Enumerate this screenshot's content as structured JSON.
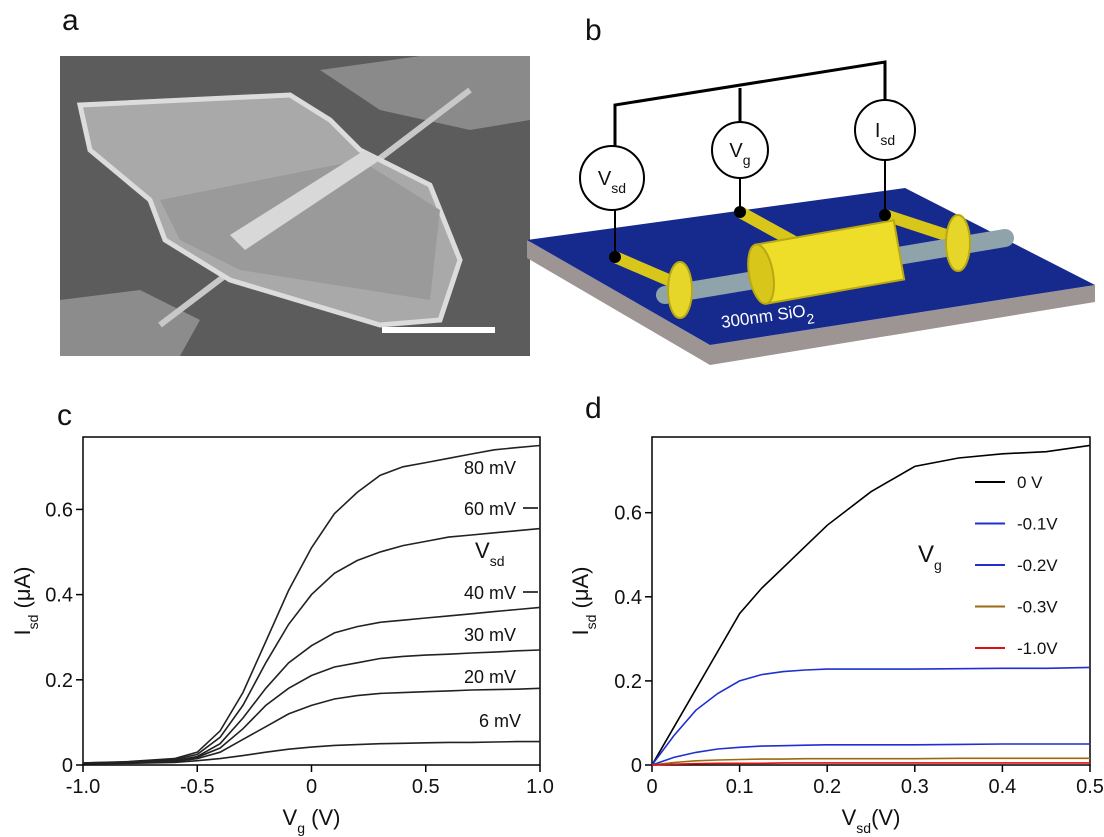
{
  "panel_labels": [
    "a",
    "b",
    "c",
    "d"
  ],
  "diagram": {
    "meters": [
      {
        "symbol": "V",
        "sub": "sd"
      },
      {
        "symbol": "V",
        "sub": "g"
      },
      {
        "symbol": "I",
        "sub": "sd"
      }
    ],
    "substrate": {
      "text": "300nm SiO",
      "sub": "2"
    }
  },
  "chart_data": [
    {
      "type": "line",
      "x": [
        -1,
        -0.8,
        -0.6,
        -0.5,
        -0.4,
        -0.3,
        -0.2,
        -0.1,
        0,
        0.1,
        0.2,
        0.3,
        0.4,
        0.5,
        0.6,
        0.7,
        0.8,
        0.9,
        1
      ],
      "xlim": [
        -1,
        1
      ],
      "ylim": [
        0,
        0.77
      ],
      "xticks": [
        {
          "value": -1,
          "label": "-1.0"
        },
        -0.5,
        0,
        0.5,
        {
          "value": 1,
          "label": "1.0"
        }
      ],
      "yticks": [
        0,
        0.2,
        0.4,
        0.6
      ],
      "xlabel": [
        "V",
        "g",
        " (V)"
      ],
      "ylabel": [
        "I",
        "sd",
        " (μA)"
      ],
      "legend_title": [
        "V",
        "sd"
      ],
      "series": [
        {
          "name": "6 mV",
          "color": "#222222",
          "values": [
            0.003,
            0.004,
            0.006,
            0.01,
            0.015,
            0.022,
            0.03,
            0.037,
            0.042,
            0.046,
            0.048,
            0.05,
            0.051,
            0.052,
            0.053,
            0.053,
            0.054,
            0.055,
            0.055
          ]
        },
        {
          "name": "20 mV",
          "color": "#222222",
          "values": [
            0.004,
            0.005,
            0.008,
            0.015,
            0.03,
            0.06,
            0.09,
            0.12,
            0.14,
            0.155,
            0.163,
            0.168,
            0.17,
            0.172,
            0.174,
            0.176,
            0.177,
            0.178,
            0.18
          ]
        },
        {
          "name": "30 mV",
          "color": "#222222",
          "values": [
            0.004,
            0.005,
            0.009,
            0.018,
            0.04,
            0.085,
            0.14,
            0.18,
            0.21,
            0.23,
            0.24,
            0.25,
            0.255,
            0.258,
            0.26,
            0.263,
            0.265,
            0.268,
            0.27
          ]
        },
        {
          "name": "40 mV",
          "color": "#222222",
          "values": [
            0.004,
            0.006,
            0.01,
            0.02,
            0.05,
            0.11,
            0.18,
            0.24,
            0.28,
            0.31,
            0.325,
            0.335,
            0.34,
            0.345,
            0.35,
            0.355,
            0.36,
            0.365,
            0.37
          ]
        },
        {
          "name": "60 mV",
          "color": "#222222",
          "values": [
            0.005,
            0.007,
            0.013,
            0.025,
            0.065,
            0.14,
            0.24,
            0.33,
            0.4,
            0.45,
            0.48,
            0.5,
            0.515,
            0.525,
            0.535,
            0.54,
            0.545,
            0.55,
            0.555
          ]
        },
        {
          "name": "80 mV",
          "color": "#222222",
          "values": [
            0.005,
            0.008,
            0.015,
            0.03,
            0.08,
            0.17,
            0.29,
            0.41,
            0.51,
            0.59,
            0.64,
            0.68,
            0.7,
            0.71,
            0.72,
            0.73,
            0.74,
            0.745,
            0.75
          ]
        }
      ]
    },
    {
      "type": "line",
      "x": [
        0,
        0.025,
        0.05,
        0.075,
        0.1,
        0.125,
        0.15,
        0.175,
        0.2,
        0.25,
        0.3,
        0.35,
        0.4,
        0.45,
        0.5
      ],
      "xlim": [
        0,
        0.5
      ],
      "ylim": [
        0,
        0.78
      ],
      "xticks": [
        0,
        0.1,
        0.2,
        0.3,
        0.4,
        0.5
      ],
      "yticks": [
        0,
        0.2,
        0.4,
        0.6
      ],
      "xlabel": [
        "V",
        "sd",
        "(V)"
      ],
      "ylabel": [
        "I",
        "sd",
        " (μA)"
      ],
      "legend_title": [
        "V",
        "g"
      ],
      "legend": "upper right",
      "series": [
        {
          "name": "0 V",
          "color": "#000000",
          "values": [
            0,
            0.09,
            0.18,
            0.27,
            0.36,
            0.42,
            0.47,
            0.52,
            0.57,
            0.65,
            0.71,
            0.73,
            0.74,
            0.745,
            0.76
          ]
        },
        {
          "name": "-0.1V",
          "color": "#1f2fd0",
          "values": [
            0,
            0.07,
            0.13,
            0.17,
            0.2,
            0.215,
            0.222,
            0.226,
            0.228,
            0.228,
            0.228,
            0.229,
            0.23,
            0.23,
            0.232
          ]
        },
        {
          "name": "-0.2V",
          "color": "#1f2fd0",
          "values": [
            0,
            0.018,
            0.03,
            0.038,
            0.042,
            0.045,
            0.046,
            0.047,
            0.048,
            0.048,
            0.048,
            0.049,
            0.05,
            0.05,
            0.05
          ]
        },
        {
          "name": "-0.3V",
          "color": "#9a6a10",
          "values": [
            0,
            0.006,
            0.01,
            0.012,
            0.013,
            0.014,
            0.014,
            0.015,
            0.015,
            0.015,
            0.015,
            0.016,
            0.016,
            0.016,
            0.016
          ]
        },
        {
          "name": "-1.0V",
          "color": "#e01010",
          "values": [
            0,
            0.002,
            0.003,
            0.004,
            0.004,
            0.004,
            0.005,
            0.005,
            0.005,
            0.005,
            0.005,
            0.005,
            0.005,
            0.005,
            0.005
          ]
        }
      ]
    }
  ]
}
